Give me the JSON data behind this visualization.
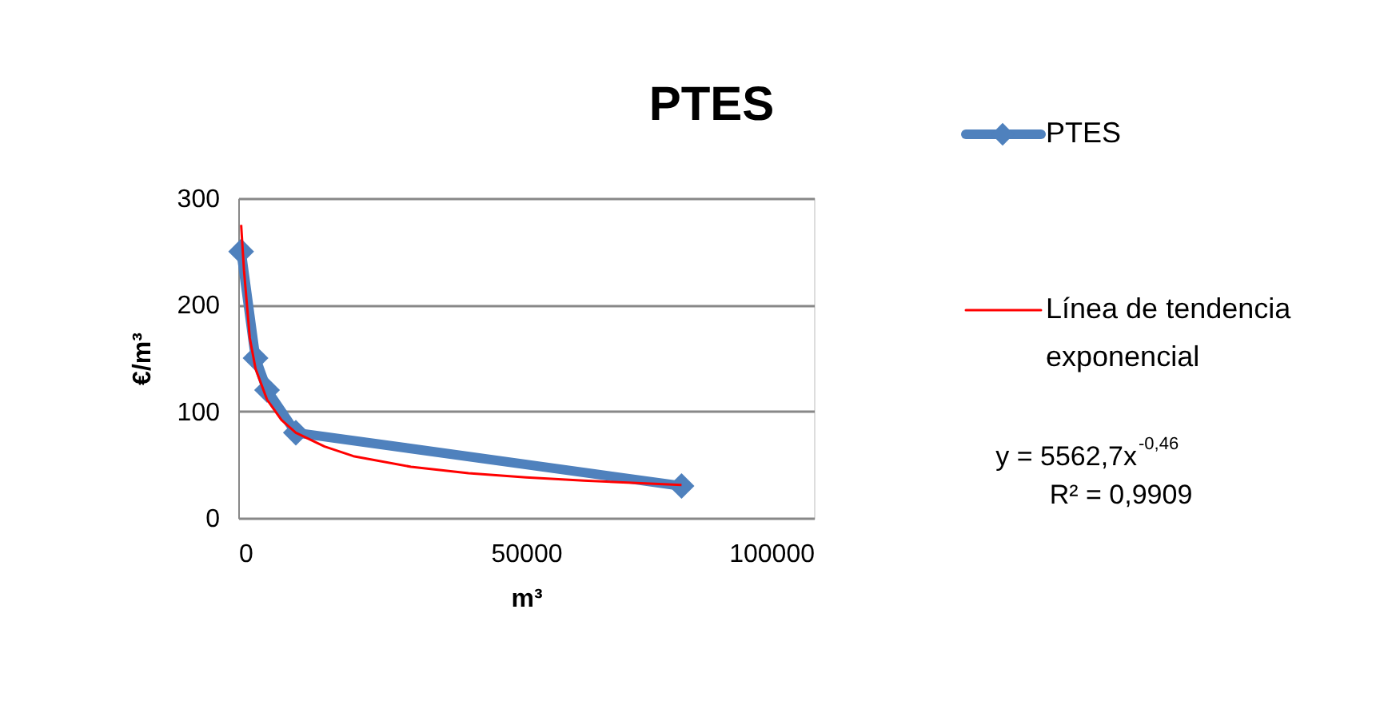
{
  "chart_data": {
    "type": "line",
    "title": "PTES",
    "xlabel": "m³",
    "ylabel": "€/m³",
    "xlim": [
      0,
      100000
    ],
    "xticks": [
      0,
      50000,
      100000
    ],
    "ylim": [
      0,
      300
    ],
    "yticks": [
      0,
      100,
      200,
      300
    ],
    "grid": "y",
    "legend": "right",
    "line_style": "solid",
    "series": [
      {
        "name": "PTES",
        "color": "#4f81bd",
        "marker": "diamond",
        "x": [
          500,
          3000,
          5000,
          10000,
          77000
        ],
        "values": [
          250,
          150,
          120,
          80,
          30
        ]
      },
      {
        "name": "Línea de tendencia exponencial",
        "color": "#ff0000",
        "marker": "none",
        "x": [
          500,
          1000,
          2000,
          3000,
          5000,
          7500,
          10000,
          15000,
          20000,
          30000,
          40000,
          50000,
          60000,
          77000
        ],
        "values": [
          275,
          232,
          169,
          140,
          111,
          92,
          80,
          67,
          58,
          48,
          42,
          38,
          35,
          31
        ]
      }
    ],
    "annotations": [
      "y = 5562,7x$^{-0,46}$",
      "R² = 0,9909"
    ]
  }
}
